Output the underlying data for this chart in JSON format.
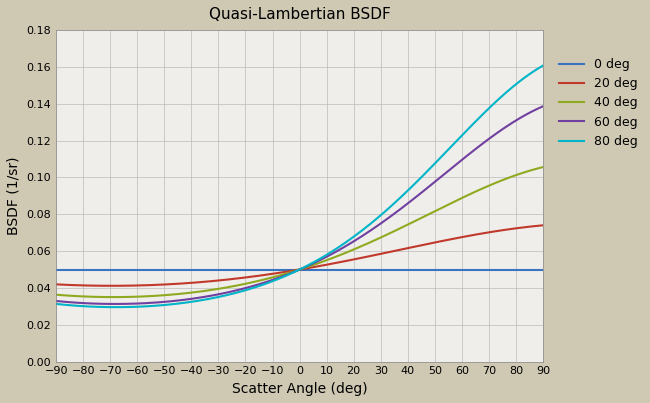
{
  "title": "Quasi-Lambertian BSDF",
  "xlabel": "Scatter Angle (deg)",
  "ylabel": "BSDF (1/sr)",
  "xlim": [
    -90,
    90
  ],
  "ylim": [
    0,
    0.18
  ],
  "yticks": [
    0,
    0.02,
    0.04,
    0.06,
    0.08,
    0.1,
    0.12,
    0.14,
    0.16,
    0.18
  ],
  "xticks": [
    -90,
    -80,
    -70,
    -60,
    -50,
    -40,
    -30,
    -20,
    -10,
    0,
    10,
    20,
    30,
    40,
    50,
    60,
    70,
    80,
    90
  ],
  "background_color": "#cfc9b4",
  "plot_bg_color": "#f0eeea",
  "grid_color": "#bbbbbb",
  "rho_pi": 0.05,
  "series": [
    {
      "label": "0 deg",
      "color": "#3874bf",
      "theta_i_deg": 0
    },
    {
      "label": "20 deg",
      "color": "#c0392b",
      "theta_i_deg": 20
    },
    {
      "label": "40 deg",
      "color": "#8faa20",
      "theta_i_deg": 40
    },
    {
      "label": "60 deg",
      "color": "#7040a0",
      "theta_i_deg": 60
    },
    {
      "label": "80 deg",
      "color": "#00b5c8",
      "theta_i_deg": 80
    }
  ],
  "figsize": [
    6.5,
    4.03
  ],
  "dpi": 100
}
